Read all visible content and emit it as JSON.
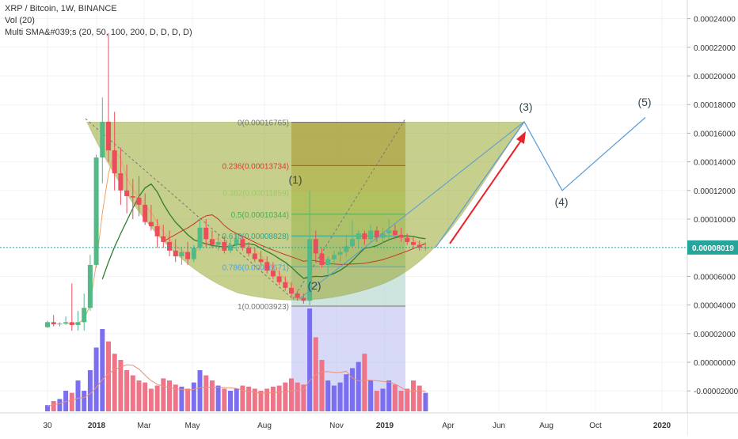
{
  "legend": {
    "symbol": "XRP / Bitcoin, 1W, BINANCE",
    "volume": "Vol (20)",
    "sma": "Multi SMA&#039;s (20, 50, 100, 200, D, D, D, D)"
  },
  "colors": {
    "up": "#53b987",
    "down": "#eb4d5c",
    "vol_up": "#7b6ef0",
    "vol_down": "#f07487",
    "cup_fill": "#9aa830",
    "projection": "#5b9bd5",
    "arrow": "#e8232a",
    "fib_box": "#9c8c48",
    "price_line": "#26a69a"
  },
  "chart_data": {
    "type": "candlestick",
    "interval": "1W",
    "x_ticks": [
      "30",
      "2018",
      "Mar",
      "May",
      "Aug",
      "Nov",
      "2019",
      "Apr",
      "Jun",
      "Aug",
      "Oct",
      "2020"
    ],
    "y_ticks": [
      "0.00024000",
      "0.00022000",
      "0.00020000",
      "0.00018000",
      "0.00016000",
      "0.00014000",
      "0.00012000",
      "0.00010000",
      "0.00008000",
      "0.00006000",
      "0.00004000",
      "0.00002000",
      "0.00000000",
      "-0.00002000"
    ],
    "ylim": [
      -2.5e-05,
      0.000245
    ],
    "current_price": "0.00008019",
    "candles": [
      {
        "o": 2.45e-05,
        "h": 2.9e-05,
        "l": 2.4e-05,
        "c": 2.8e-05
      },
      {
        "o": 2.8e-05,
        "h": 3.3e-05,
        "l": 2.5e-05,
        "c": 2.65e-05
      },
      {
        "o": 2.65e-05,
        "h": 2.8e-05,
        "l": 2.5e-05,
        "c": 2.7e-05
      },
      {
        "o": 2.7e-05,
        "h": 3.2e-05,
        "l": 2.6e-05,
        "c": 2.8e-05
      },
      {
        "o": 2.8e-05,
        "h": 5.5e-05,
        "l": 2.2e-05,
        "c": 2.6e-05
      },
      {
        "o": 2.6e-05,
        "h": 3.6e-05,
        "l": 2.2e-05,
        "c": 2.8e-05
      },
      {
        "o": 2.8e-05,
        "h": 4.8e-05,
        "l": 2.2e-05,
        "c": 3.8e-05
      },
      {
        "o": 3.8e-05,
        "h": 7.5e-05,
        "l": 3.6e-05,
        "c": 6.8e-05
      },
      {
        "o": 6.8e-05,
        "h": 0.000145,
        "l": 6.6e-05,
        "c": 0.000143
      },
      {
        "o": 0.000143,
        "h": 0.000185,
        "l": 0.000125,
        "c": 0.000168
      },
      {
        "o": 0.000168,
        "h": 0.00023,
        "l": 0.00014,
        "c": 0.000148
      },
      {
        "o": 0.000148,
        "h": 0.000175,
        "l": 0.00012,
        "c": 0.000132
      },
      {
        "o": 0.000132,
        "h": 0.00015,
        "l": 0.00011,
        "c": 0.00012
      },
      {
        "o": 0.00012,
        "h": 0.000138,
        "l": 0.000104,
        "c": 0.000116
      },
      {
        "o": 0.000116,
        "h": 0.000128,
        "l": 0.0001,
        "c": 0.000115
      },
      {
        "o": 0.000115,
        "h": 0.00013,
        "l": 0.000102,
        "c": 0.00011
      },
      {
        "o": 0.00011,
        "h": 0.000118,
        "l": 9.6e-05,
        "c": 9.8e-05
      },
      {
        "o": 9.8e-05,
        "h": 0.00011,
        "l": 9.2e-05,
        "c": 9.5e-05
      },
      {
        "o": 9.5e-05,
        "h": 0.0001,
        "l": 8e-05,
        "c": 8.8e-05
      },
      {
        "o": 8.8e-05,
        "h": 9.6e-05,
        "l": 8e-05,
        "c": 8.4e-05
      },
      {
        "o": 8.4e-05,
        "h": 9.2e-05,
        "l": 7.4e-05,
        "c": 7.8e-05
      },
      {
        "o": 7.8e-05,
        "h": 8.6e-05,
        "l": 7e-05,
        "c": 7.4e-05
      },
      {
        "o": 7.4e-05,
        "h": 8e-05,
        "l": 6.8e-05,
        "c": 7.7e-05
      },
      {
        "o": 7.7e-05,
        "h": 8.4e-05,
        "l": 6.8e-05,
        "c": 7.2e-05
      },
      {
        "o": 7.2e-05,
        "h": 8.2e-05,
        "l": 7e-05,
        "c": 8e-05
      },
      {
        "o": 8e-05,
        "h": 0.0001,
        "l": 7.8e-05,
        "c": 9.4e-05
      },
      {
        "o": 9.4e-05,
        "h": 0.0001,
        "l": 8e-05,
        "c": 8.6e-05
      },
      {
        "o": 8.6e-05,
        "h": 9.2e-05,
        "l": 8e-05,
        "c": 8.2e-05
      },
      {
        "o": 8.2e-05,
        "h": 9e-05,
        "l": 7.8e-05,
        "c": 8.4e-05
      },
      {
        "o": 8.4e-05,
        "h": 8.8e-05,
        "l": 7.6e-05,
        "c": 7.8e-05
      },
      {
        "o": 7.8e-05,
        "h": 8.6e-05,
        "l": 7.6e-05,
        "c": 8.2e-05
      },
      {
        "o": 8.2e-05,
        "h": 9e-05,
        "l": 7.8e-05,
        "c": 8.6e-05
      },
      {
        "o": 8.6e-05,
        "h": 8.8e-05,
        "l": 7.8e-05,
        "c": 8e-05
      },
      {
        "o": 8e-05,
        "h": 8.4e-05,
        "l": 7.4e-05,
        "c": 7.6e-05
      },
      {
        "o": 7.6e-05,
        "h": 8e-05,
        "l": 7e-05,
        "c": 7.2e-05
      },
      {
        "o": 7.2e-05,
        "h": 7.8e-05,
        "l": 6.8e-05,
        "c": 7e-05
      },
      {
        "o": 7e-05,
        "h": 7.4e-05,
        "l": 6.2e-05,
        "c": 6.4e-05
      },
      {
        "o": 6.4e-05,
        "h": 7e-05,
        "l": 5.8e-05,
        "c": 6e-05
      },
      {
        "o": 6e-05,
        "h": 6.4e-05,
        "l": 5.4e-05,
        "c": 5.6e-05
      },
      {
        "o": 5.6e-05,
        "h": 6e-05,
        "l": 5e-05,
        "c": 5.2e-05
      },
      {
        "o": 5.2e-05,
        "h": 5.6e-05,
        "l": 4.6e-05,
        "c": 4.8e-05
      },
      {
        "o": 4.8e-05,
        "h": 5e-05,
        "l": 4.3e-05,
        "c": 4.5e-05
      },
      {
        "o": 4.5e-05,
        "h": 4.8e-05,
        "l": 4.1e-05,
        "c": 4.3e-05
      },
      {
        "o": 4.3e-05,
        "h": 0.00012,
        "l": 4e-05,
        "c": 8.6e-05
      },
      {
        "o": 8.6e-05,
        "h": 9.2e-05,
        "l": 7e-05,
        "c": 7.6e-05
      },
      {
        "o": 7.6e-05,
        "h": 8e-05,
        "l": 6.6e-05,
        "c": 6.8e-05
      },
      {
        "o": 6.8e-05,
        "h": 7.4e-05,
        "l": 6.2e-05,
        "c": 7.2e-05
      },
      {
        "o": 7.2e-05,
        "h": 7.8e-05,
        "l": 6.8e-05,
        "c": 7.5e-05
      },
      {
        "o": 7.5e-05,
        "h": 8e-05,
        "l": 7e-05,
        "c": 7.7e-05
      },
      {
        "o": 7.7e-05,
        "h": 8.8e-05,
        "l": 7.4e-05,
        "c": 8.1e-05
      },
      {
        "o": 8.1e-05,
        "h": 9.9e-05,
        "l": 8e-05,
        "c": 8.6e-05
      },
      {
        "o": 8.6e-05,
        "h": 9.2e-05,
        "l": 8e-05,
        "c": 9e-05
      },
      {
        "o": 9e-05,
        "h": 9.2e-05,
        "l": 8.2e-05,
        "c": 8.6e-05
      },
      {
        "o": 8.6e-05,
        "h": 9.6e-05,
        "l": 8.4e-05,
        "c": 9.2e-05
      },
      {
        "o": 9.2e-05,
        "h": 9.5e-05,
        "l": 8.4e-05,
        "c": 8.7e-05
      },
      {
        "o": 8.7e-05,
        "h": 9.4e-05,
        "l": 8.3e-05,
        "c": 9e-05
      },
      {
        "o": 9e-05,
        "h": 0.0001,
        "l": 8.6e-05,
        "c": 9.2e-05
      },
      {
        "o": 9.2e-05,
        "h": 9.6e-05,
        "l": 8.6e-05,
        "c": 8.9e-05
      },
      {
        "o": 8.9e-05,
        "h": 9.4e-05,
        "l": 8.4e-05,
        "c": 8.7e-05
      },
      {
        "o": 8.7e-05,
        "h": 9e-05,
        "l": 8.2e-05,
        "c": 8.4e-05
      },
      {
        "o": 8.4e-05,
        "h": 8.8e-05,
        "l": 8e-05,
        "c": 8.2e-05
      },
      {
        "o": 8.2e-05,
        "h": 8.5e-05,
        "l": 7.8e-05,
        "c": 8e-05
      },
      {
        "o": 8e-05,
        "h": 8.4e-05,
        "l": 7.8e-05,
        "c": 8.02e-05
      }
    ],
    "volumes": [
      0.06,
      0.1,
      0.12,
      0.2,
      0.18,
      0.3,
      0.2,
      0.4,
      0.62,
      0.8,
      0.68,
      0.56,
      0.5,
      0.4,
      0.35,
      0.3,
      0.28,
      0.22,
      0.25,
      0.32,
      0.3,
      0.26,
      0.24,
      0.22,
      0.28,
      0.4,
      0.35,
      0.3,
      0.25,
      0.22,
      0.2,
      0.22,
      0.25,
      0.24,
      0.22,
      0.2,
      0.22,
      0.24,
      0.25,
      0.28,
      0.32,
      0.28,
      0.26,
      1.0,
      0.72,
      0.5,
      0.3,
      0.25,
      0.28,
      0.36,
      0.42,
      0.48,
      0.56,
      0.3,
      0.2,
      0.22,
      0.3,
      0.26,
      0.2,
      0.22,
      0.3,
      0.25,
      0.18
    ],
    "fib_levels": [
      {
        "label": "0(0.00016765)",
        "value": 0.00016765
      },
      {
        "label": "0.236(0.00013734)",
        "value": 0.00013734
      },
      {
        "label": "0.382(0.00011859)",
        "value": 0.00011859
      },
      {
        "label": "0.5(0.00010344)",
        "value": 0.00010344
      },
      {
        "label": "0.618(0.00008828)",
        "value": 8.828e-05
      },
      {
        "label": "0.786(0.00006671)",
        "value": 6.671e-05
      },
      {
        "label": "1(0.00003923)",
        "value": 3.923e-05
      }
    ],
    "annotations": [
      {
        "label": "(1)",
        "value": 0.000123
      },
      {
        "label": "(2)",
        "value": 5e-05
      },
      {
        "label": "(3)",
        "value": 0.000175
      },
      {
        "label": "(4)",
        "value": 0.000105
      },
      {
        "label": "(5)",
        "value": 0.000177
      }
    ],
    "projection": [
      8.02e-05,
      0.000168,
      0.00012,
      0.000171
    ]
  }
}
